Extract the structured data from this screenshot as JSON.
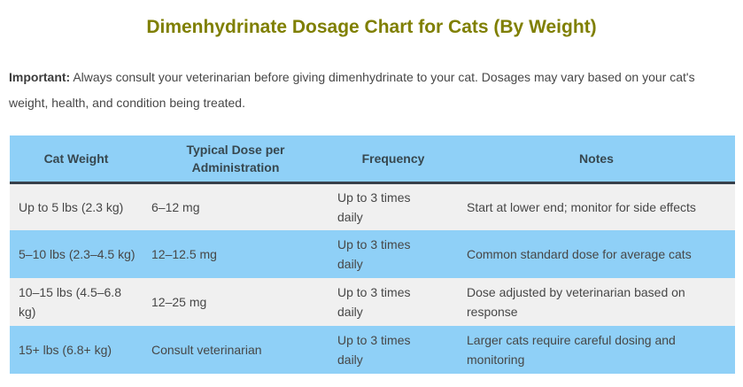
{
  "page": {
    "title": "Dimenhydrinate Dosage Chart for Cats (By Weight)"
  },
  "note": {
    "label": "Important:",
    "text": " Always consult your veterinarian before giving dimenhydrinate to your cat. Dosages may vary based on your cat's weight, health, and condition being treated."
  },
  "table": {
    "headers": [
      "Cat Weight",
      "Typical Dose per Administration",
      "Frequency",
      "Notes"
    ],
    "rows": [
      [
        "Up to 5 lbs (2.3 kg)",
        "6–12 mg",
        "Up to 3 times daily",
        "Start at lower end; monitor for side effects"
      ],
      [
        "5–10 lbs (2.3–4.5 kg)",
        "12–12.5 mg",
        "Up to 3 times daily",
        "Common standard dose for average cats"
      ],
      [
        "10–15 lbs (4.5–6.8 kg)",
        "12–25 mg",
        "Up to 3 times daily",
        "Dose adjusted by veterinarian based on response"
      ],
      [
        "15+ lbs (6.8+ kg)",
        "Consult veterinarian",
        "Up to 3 times daily",
        "Larger cats require careful dosing and monitoring"
      ]
    ]
  },
  "colors": {
    "title_color": "#7f7f00",
    "header_bg": "#8fd0f7",
    "row_blue": "#8fd0f7",
    "row_gray": "#f0f0f0",
    "header_border": "#37404a",
    "header_text": "#37474f",
    "body_text": "#474747"
  }
}
